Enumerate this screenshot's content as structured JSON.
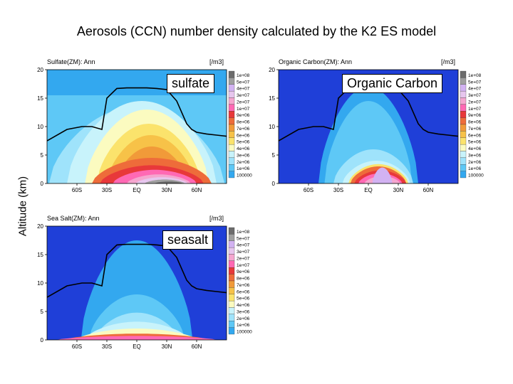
{
  "title": "Aerosols (CCN) number density calculated by the K2 ES model",
  "ylabel": "Altitude (km)",
  "colors": {
    "levels": [
      "#1f3fd8",
      "#33a8ef",
      "#5ec8f6",
      "#9fe3fb",
      "#c8f3fb",
      "#fbfbc0",
      "#fbe36c",
      "#f7c248",
      "#f19a39",
      "#ee6c3a",
      "#e8383a",
      "#ff69b4",
      "#f5a6cf",
      "#e7c6ee",
      "#d2b2f2",
      "#9f9f9f",
      "#6c6c6c"
    ],
    "boundary": "#000000"
  },
  "chart_data": [
    {
      "type": "heatmap",
      "panel_title": "Sulfate(ZM): Ann",
      "units": "[/m3]",
      "callout": "sulfate",
      "x_ticks": [
        "60S",
        "30S",
        "EQ",
        "30N",
        "60N"
      ],
      "x_values": [
        -60,
        -30,
        0,
        30,
        60
      ],
      "xlim": [
        -90,
        90
      ],
      "y_ticks": [
        "0",
        "5",
        "10",
        "15",
        "20"
      ],
      "ylim": [
        0,
        20
      ],
      "colorbar": [
        "1e+08",
        "5e+07",
        "4e+07",
        "3e+07",
        "2e+07",
        "1e+07",
        "9e+06",
        "8e+06",
        "7e+06",
        "6e+06",
        "5e+06",
        "4e+06",
        "3e+06",
        "2e+06",
        "1e+06",
        "100000"
      ],
      "boundary_line": {
        "x": [
          -90,
          -70,
          -55,
          -45,
          -35,
          -30,
          -20,
          -10,
          0,
          10,
          20,
          30,
          40,
          50,
          55,
          60,
          70,
          80,
          90
        ],
        "y": [
          7.5,
          9.5,
          10,
          10,
          9.5,
          15,
          16.7,
          16.8,
          16.8,
          16.8,
          16.7,
          16.5,
          14.5,
          10.5,
          9.5,
          9.0,
          8.7,
          8.5,
          8.3
        ]
      }
    },
    {
      "type": "heatmap",
      "panel_title": "Organic Carbon(ZM): Ann",
      "units": "[/m3]",
      "callout": "Organic Carbon",
      "x_ticks": [
        "60S",
        "30S",
        "EQ",
        "30N",
        "60N"
      ],
      "x_values": [
        -60,
        -30,
        0,
        30,
        60
      ],
      "xlim": [
        -90,
        90
      ],
      "y_ticks": [
        "0",
        "5",
        "10",
        "15",
        "20"
      ],
      "ylim": [
        0,
        20
      ],
      "colorbar": [
        "1e+08",
        "5e+07",
        "4e+07",
        "3e+07",
        "2e+07",
        "1e+07",
        "9e+06",
        "8e+06",
        "7e+06",
        "6e+06",
        "5e+06",
        "4e+06",
        "3e+06",
        "2e+06",
        "1e+06",
        "100000"
      ],
      "boundary_line": {
        "x": [
          -90,
          -70,
          -55,
          -45,
          -35,
          -30,
          -20,
          -10,
          0,
          10,
          20,
          30,
          40,
          50,
          55,
          60,
          70,
          80,
          90
        ],
        "y": [
          7.5,
          9.5,
          10,
          10,
          9.5,
          15,
          16.7,
          16.8,
          16.8,
          16.8,
          16.7,
          16.5,
          14.5,
          10.5,
          9.5,
          9.0,
          8.7,
          8.5,
          8.3
        ]
      }
    },
    {
      "type": "heatmap",
      "panel_title": "Sea Salt(ZM): Ann",
      "units": "[/m3]",
      "callout": "seasalt",
      "x_ticks": [
        "60S",
        "30S",
        "EQ",
        "30N",
        "60N"
      ],
      "x_values": [
        -60,
        -30,
        0,
        30,
        60
      ],
      "xlim": [
        -90,
        90
      ],
      "y_ticks": [
        "0",
        "5",
        "10",
        "15",
        "20"
      ],
      "ylim": [
        0,
        20
      ],
      "colorbar": [
        "1e+08",
        "5e+07",
        "4e+07",
        "3e+07",
        "2e+07",
        "1e+07",
        "9e+06",
        "8e+06",
        "7e+06",
        "6e+06",
        "5e+06",
        "4e+06",
        "3e+06",
        "2e+06",
        "1e+06",
        "100000"
      ],
      "boundary_line": {
        "x": [
          -90,
          -70,
          -55,
          -45,
          -35,
          -30,
          -20,
          -10,
          0,
          10,
          20,
          30,
          40,
          50,
          55,
          60,
          70,
          80,
          90
        ],
        "y": [
          7.5,
          9.5,
          10,
          10,
          9.5,
          15,
          16.7,
          16.8,
          16.8,
          16.8,
          16.7,
          16.5,
          14.5,
          10.5,
          9.5,
          9.0,
          8.7,
          8.5,
          8.3
        ]
      }
    }
  ]
}
